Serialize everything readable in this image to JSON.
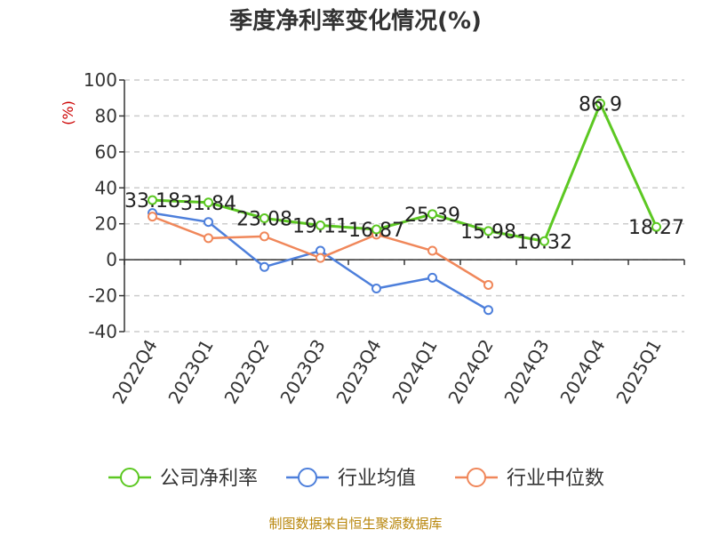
{
  "chart_data": {
    "type": "line",
    "title": "季度净利率变化情况(%)",
    "unit_label": "(%)",
    "categories": [
      "2022Q4",
      "2023Q1",
      "2023Q2",
      "2023Q3",
      "2023Q4",
      "2024Q1",
      "2024Q2",
      "2024Q3",
      "2024Q4",
      "2025Q1"
    ],
    "yticks": [
      "100",
      "80",
      "60",
      "40",
      "20",
      "0",
      "-20",
      "-40"
    ],
    "ylim": [
      -40,
      100
    ],
    "grid": true,
    "legend_position": "bottom",
    "series": [
      {
        "name": "公司净利率",
        "color": "#5cc822",
        "values": [
          33.18,
          31.84,
          23.08,
          19.11,
          16.87,
          25.39,
          15.98,
          10.32,
          86.9,
          18.27
        ],
        "labels": [
          "33.18",
          "31.84",
          "23.08",
          "19.11",
          "16.87",
          "25.39",
          "15.98",
          "10.32",
          "86.9",
          "18.27"
        ]
      },
      {
        "name": "行业均值",
        "color": "#4d7fdb",
        "values": [
          26,
          21,
          -4,
          5,
          -16,
          -10,
          -28,
          null,
          null,
          null
        ]
      },
      {
        "name": "行业中位数",
        "color": "#f0875a",
        "values": [
          24,
          12,
          13,
          1,
          14,
          5,
          -14,
          null,
          null,
          null
        ]
      }
    ],
    "source": "制图数据来自恒生聚源数据库"
  }
}
